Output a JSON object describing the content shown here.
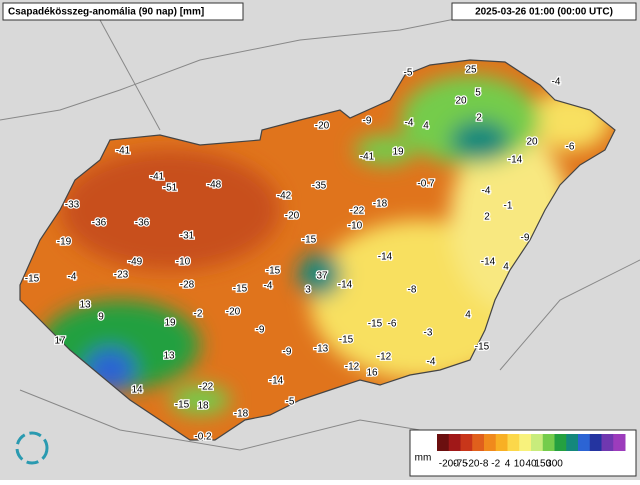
{
  "header": {
    "title": "Csapadékösszeg-anomália (90 nap) [mm]",
    "timestamp": "2025-03-26 01:00 (00:00 UTC)"
  },
  "map_labels": [
    -5,
    25,
    -4,
    20,
    5,
    2,
    -9,
    -4,
    4,
    -20,
    20,
    -6,
    -41,
    -41,
    19,
    -14,
    -41,
    -51,
    -48,
    -35,
    -0.7,
    -4,
    -42,
    -18,
    -1,
    -33,
    -36,
    -36,
    -20,
    -22,
    2,
    -10,
    -19,
    -31,
    -15,
    -9,
    -49,
    -10,
    -14,
    -14,
    4,
    -15,
    -4,
    -23,
    -15,
    37,
    -28,
    -15,
    -4,
    3,
    -14,
    -8,
    13,
    9,
    -2,
    -20,
    19,
    -6,
    4,
    17,
    -9,
    -15,
    -3,
    -15,
    -13,
    13,
    -9,
    -15,
    -12,
    -4,
    -12,
    16,
    -14,
    -22,
    14,
    -15,
    18,
    -5,
    -18,
    -0.2
  ],
  "legend": {
    "unit": "mm",
    "ticks": [
      -200,
      -75,
      -20,
      -8,
      -2,
      4,
      10,
      40,
      150,
      300
    ],
    "colors": [
      "#6b0f0f",
      "#a01818",
      "#c8361a",
      "#e0601c",
      "#f08a1c",
      "#f8b024",
      "#fcd84a",
      "#f8f27c",
      "#c8ec7c",
      "#74cc4c",
      "#24a040",
      "#14887c",
      "#2c64d4",
      "#2434a0",
      "#7038b0",
      "#9c3cbc"
    ]
  }
}
